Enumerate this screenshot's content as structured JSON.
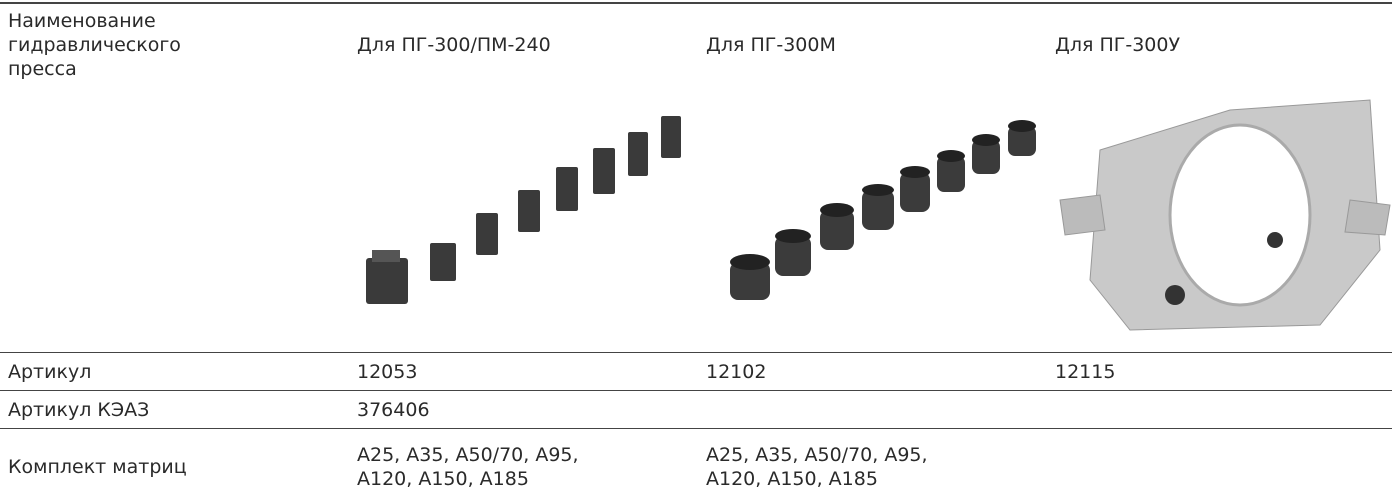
{
  "table": {
    "header": [
      "Наименование гидравлического пресса",
      "Для ПГ-300/ПМ-240",
      "Для ПГ-300М",
      "Для ПГ-300У"
    ],
    "rows": [
      [
        "Артикул",
        "12053",
        "12102",
        "12115"
      ],
      [
        "Артикул КЭАЗ",
        "376406"
      ],
      [
        "Комплект матриц",
        "А25, А35, А50/70, А95, А120, А150, А185",
        "А25, А35, А50/70, А95, А120, А150, А185"
      ]
    ]
  }
}
